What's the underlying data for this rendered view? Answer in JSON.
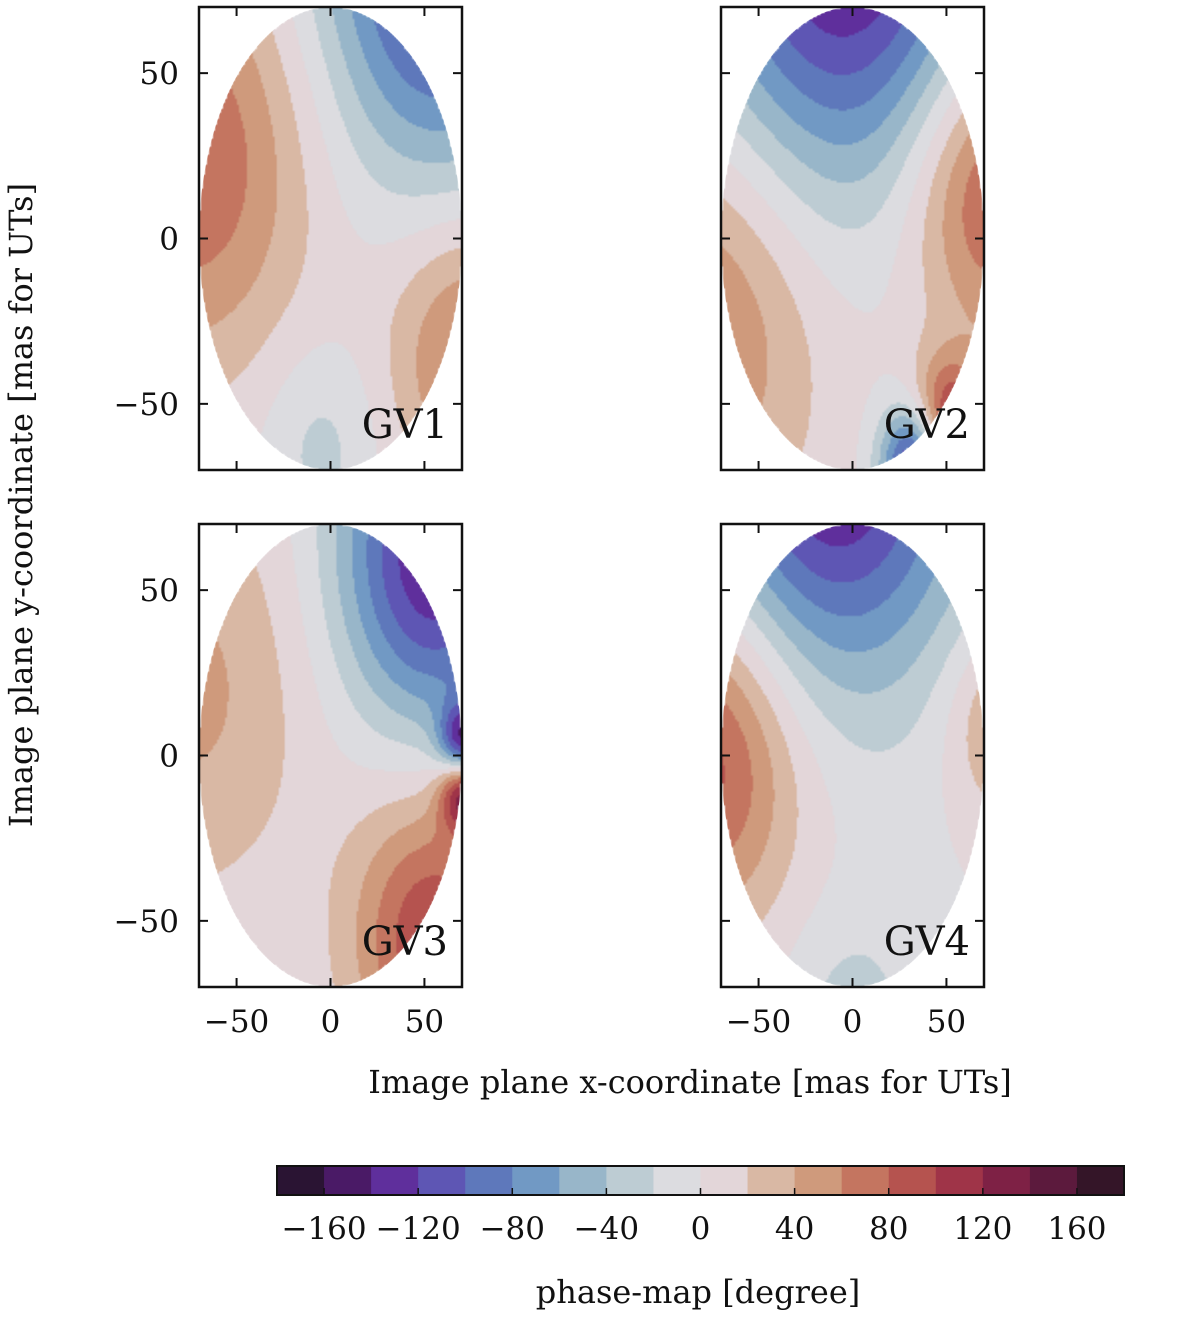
{
  "chart_data": {
    "type": "heatmap",
    "description_kind": "filled-contour phase maps on circular apertures",
    "panels": [
      {
        "label": "GV1",
        "sources": [
          {
            "x": -75,
            "y": 25,
            "a": 80,
            "s": 45
          },
          {
            "x": 75,
            "y": -35,
            "a": 70,
            "s": 30
          },
          {
            "x": 60,
            "y": 85,
            "a": -130,
            "s": 45
          },
          {
            "x": -5,
            "y": -62,
            "a": -28,
            "s": 22
          }
        ]
      },
      {
        "label": "GV2",
        "sources": [
          {
            "x": -5,
            "y": 95,
            "a": -150,
            "s": 55
          },
          {
            "x": 75,
            "y": 15,
            "a": 95,
            "s": 32
          },
          {
            "x": -80,
            "y": -25,
            "a": 65,
            "s": 45
          },
          {
            "x": 35,
            "y": -68,
            "a": -170,
            "s": 13
          },
          {
            "x": 50,
            "y": -58,
            "a": 140,
            "s": 14
          }
        ]
      },
      {
        "label": "GV3",
        "sources": [
          {
            "x": 55,
            "y": 60,
            "a": -140,
            "s": 35
          },
          {
            "x": -75,
            "y": 20,
            "a": 45,
            "s": 45
          },
          {
            "x": 55,
            "y": -55,
            "a": 100,
            "s": 30
          },
          {
            "x": 71,
            "y": 2,
            "a": -175,
            "s": 9
          },
          {
            "x": 71,
            "y": -9,
            "a": 170,
            "s": 9
          }
        ]
      },
      {
        "label": "GV4",
        "sources": [
          {
            "x": -10,
            "y": 95,
            "a": -150,
            "s": 50
          },
          {
            "x": -78,
            "y": 0,
            "a": 95,
            "s": 35
          },
          {
            "x": 80,
            "y": 10,
            "a": 50,
            "s": 20
          },
          {
            "x": 0,
            "y": -82,
            "a": -30,
            "s": 25
          }
        ]
      }
    ],
    "x_ticks": [
      -50,
      0,
      50
    ],
    "y_ticks": [
      -50,
      0,
      50
    ],
    "x_tick_labels": [
      "−50",
      "0",
      "50"
    ],
    "y_tick_labels": [
      "−50",
      "0",
      "50"
    ],
    "xlim": [
      -70,
      70
    ],
    "ylim": [
      -70,
      70
    ],
    "aperture_radius": 70,
    "xlabel": "Image plane x-coordinate [mas for UTs]",
    "ylabel": "Image plane y-coordinate [mas for UTs]",
    "colorbar": {
      "label": "phase-map [degree]",
      "range": [
        -180,
        180
      ],
      "level_step": 20,
      "ticks": [
        -160,
        -120,
        -80,
        -40,
        0,
        40,
        80,
        120,
        160
      ],
      "tick_labels": [
        "−160",
        "−120",
        "−80",
        "−40",
        "0",
        "40",
        "80",
        "120",
        "160"
      ],
      "colors": [
        "#2a1433",
        "#4a1a66",
        "#5f2f9c",
        "#5e56b4",
        "#5e78bb",
        "#7199c4",
        "#98b6c9",
        "#bdccd3",
        "#dcdce0",
        "#e3d6d9",
        "#d9b8a4",
        "#cf9a7c",
        "#c47560",
        "#b5534f",
        "#9f3448",
        "#7e2145",
        "#5c1a3d",
        "#341528"
      ]
    }
  }
}
